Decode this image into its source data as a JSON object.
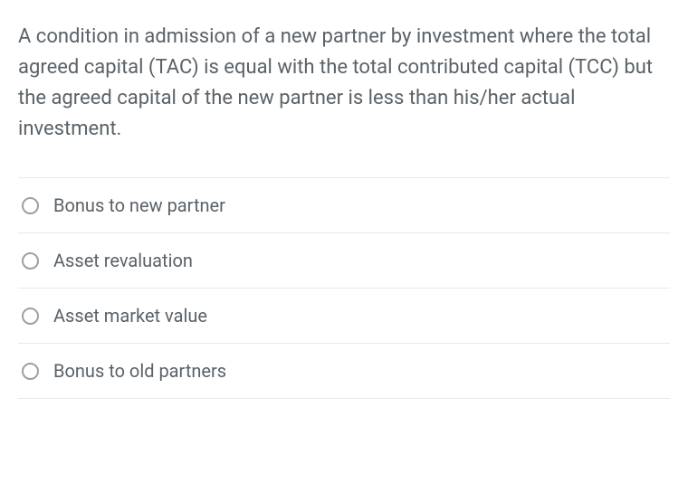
{
  "question": {
    "text": "A condition in admission of a new partner by investment where the total agreed capital (TAC) is equal with the total contributed capital (TCC) but the agreed capital of the new partner is less than his/her actual investment.",
    "text_color": "#5a6268",
    "fontsize": 22
  },
  "options": [
    {
      "label": "Bonus to new partner",
      "selected": false
    },
    {
      "label": "Asset revaluation",
      "selected": false
    },
    {
      "label": "Asset market value",
      "selected": false
    },
    {
      "label": "Bonus to old partners",
      "selected": false
    }
  ],
  "styling": {
    "background_color": "#ffffff",
    "border_color": "#e8e8e8",
    "radio_border_color": "#9aa0a6",
    "option_text_color": "#5a6268",
    "option_fontsize": 20
  }
}
